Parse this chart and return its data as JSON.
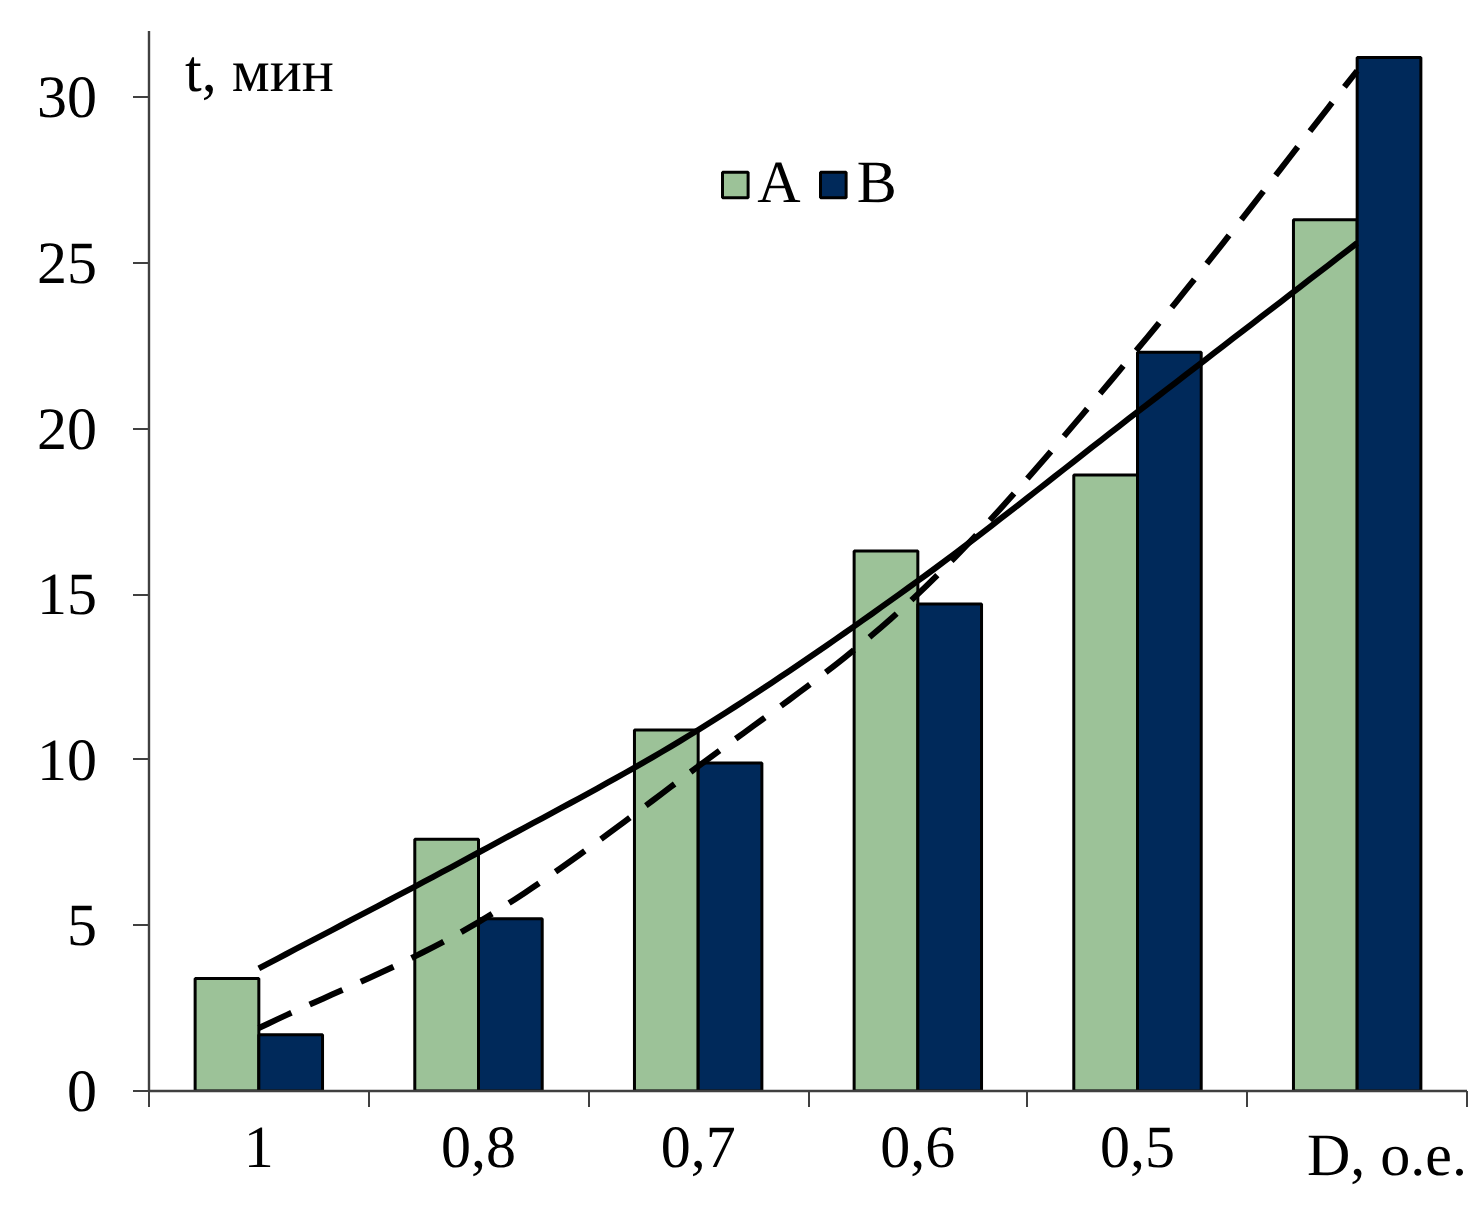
{
  "chart_data": {
    "type": "bar",
    "ylabel": "t, мин",
    "xlabel": "D, о.е.",
    "categories": [
      "1",
      "0,8",
      "0,7",
      "0,6",
      "0,5",
      null
    ],
    "series": [
      {
        "name": "A",
        "color": "#9cc298",
        "values": [
          3.4,
          7.6,
          10.9,
          16.3,
          18.6,
          26.3
        ]
      },
      {
        "name": "B",
        "color": "#00295a",
        "values": [
          1.7,
          5.2,
          9.9,
          14.7,
          22.3,
          31.2
        ]
      },
      {
        "type": "line",
        "color": "#000000",
        "line_style": "solid",
        "values": [
          3.7,
          7.2,
          10.9,
          15.4,
          20.5,
          25.6
        ]
      },
      {
        "type": "line",
        "color": "#000000",
        "line_style": "dashed",
        "values": [
          1.9,
          5.1,
          9.8,
          15.0,
          22.4,
          30.8
        ]
      }
    ],
    "ylim": [
      0,
      32
    ],
    "yticks": [
      0,
      5,
      10,
      15,
      20,
      25,
      30
    ],
    "legend": "top",
    "grid": false
  }
}
